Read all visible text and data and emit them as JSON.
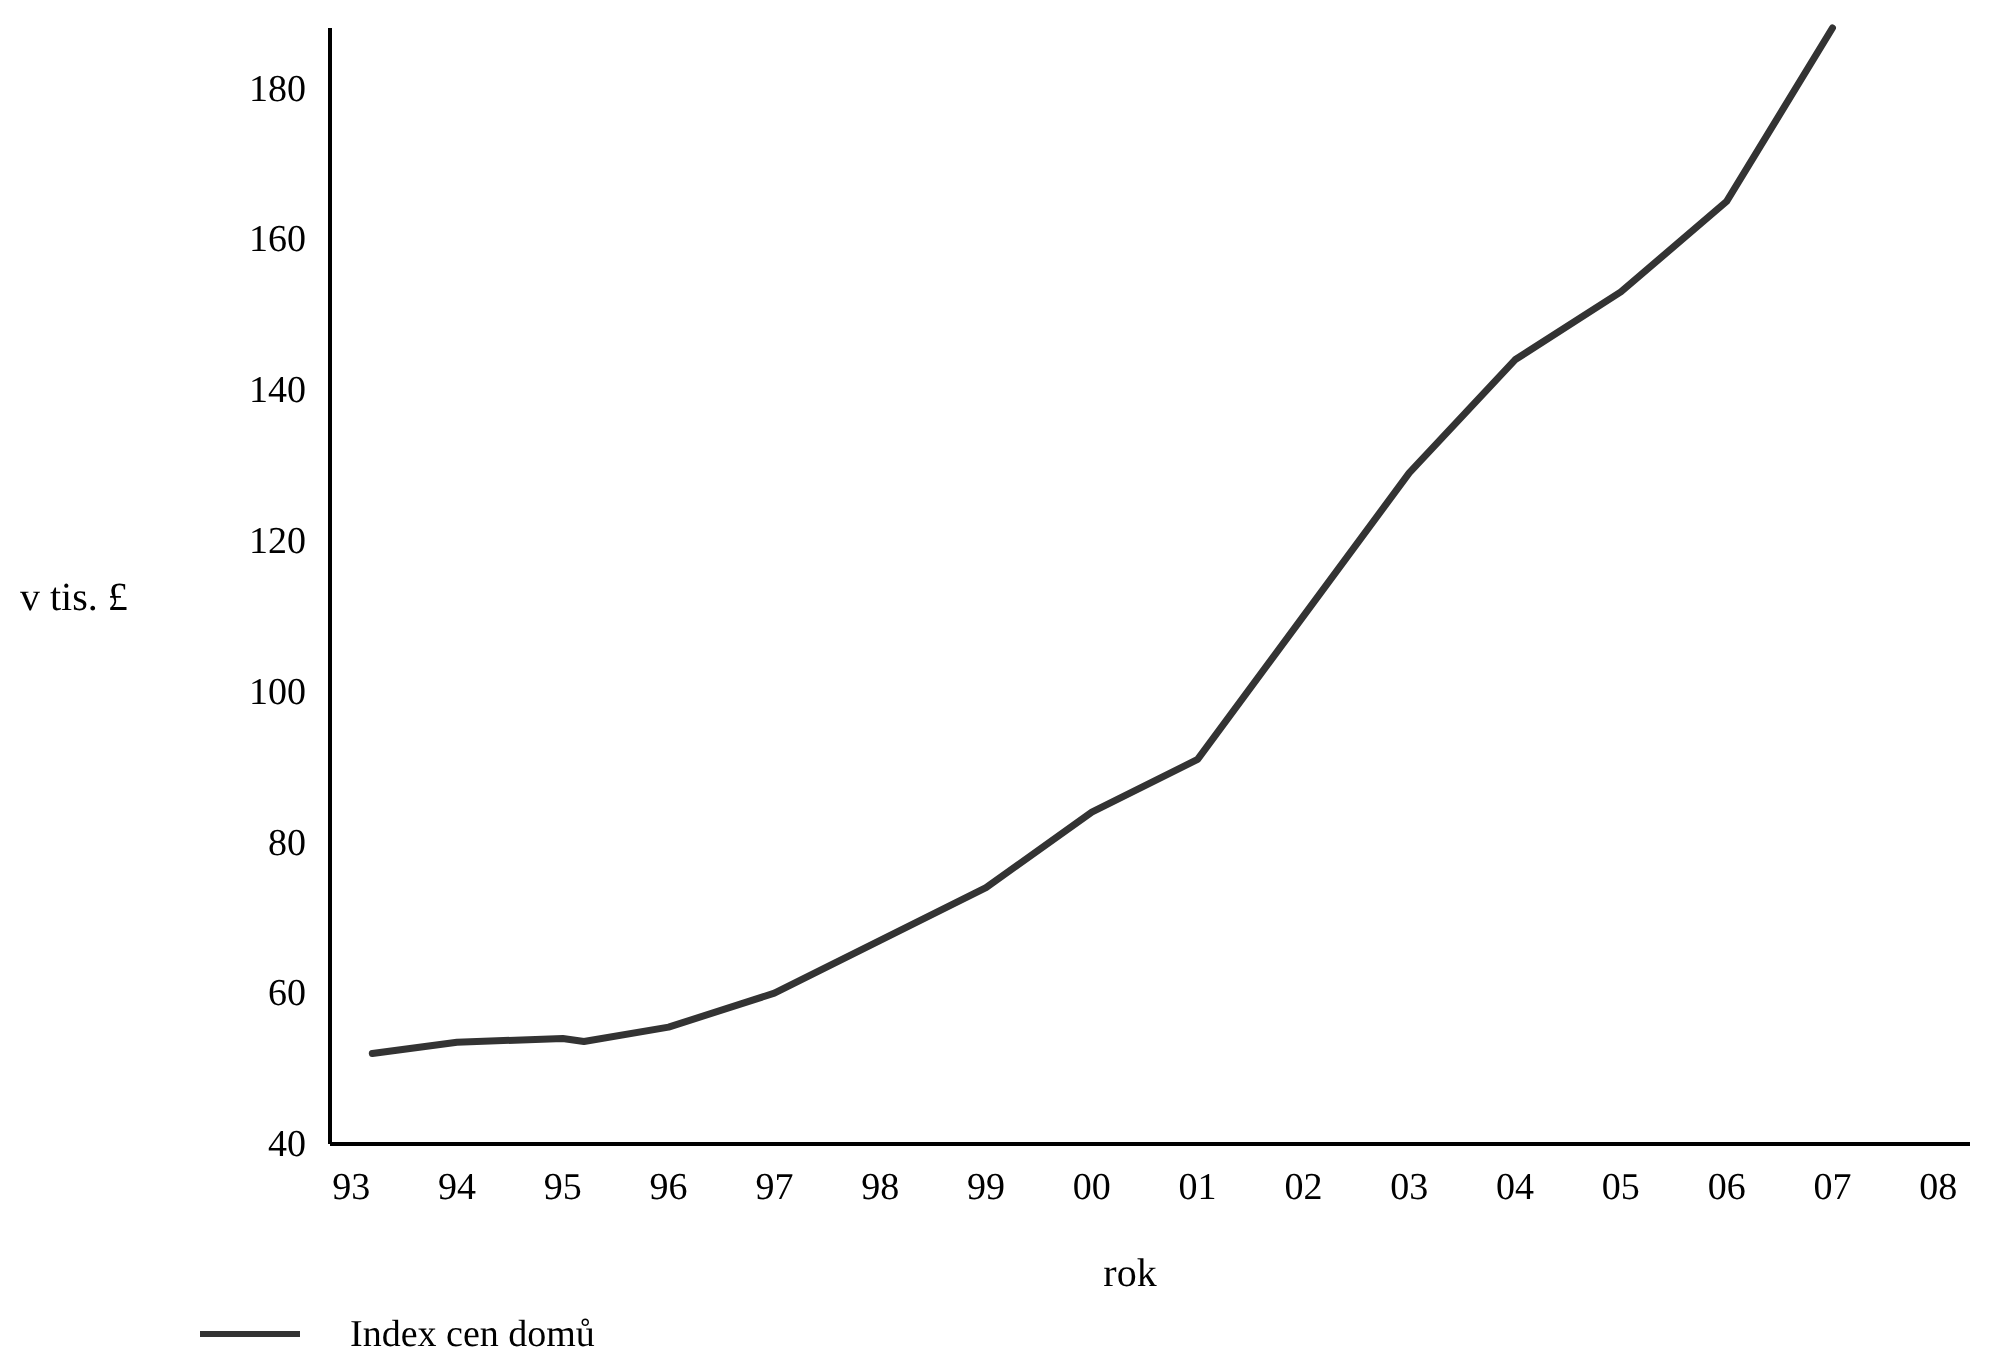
{
  "chart_data": {
    "type": "line",
    "xlabel": "rok",
    "ylabel": "v tis. £",
    "x": [
      1993.2,
      1994,
      1995,
      1995.2,
      1996,
      1997,
      1998,
      1999,
      2000,
      2001,
      2002,
      2003,
      2004,
      2005,
      2006,
      2007
    ],
    "series": [
      {
        "name": "Index cen domů",
        "color": "#333333",
        "values": [
          52,
          53.5,
          54,
          53.6,
          55.5,
          60,
          67,
          74,
          84,
          91,
          110,
          129,
          144,
          153,
          165,
          188
        ]
      }
    ],
    "xlim": [
      1992.8,
      2008.3
    ],
    "xticks": [
      {
        "value": 1993,
        "label": "93"
      },
      {
        "value": 1994,
        "label": "94"
      },
      {
        "value": 1995,
        "label": "95"
      },
      {
        "value": 1996,
        "label": "96"
      },
      {
        "value": 1997,
        "label": "97"
      },
      {
        "value": 1998,
        "label": "98"
      },
      {
        "value": 1999,
        "label": "99"
      },
      {
        "value": 2000,
        "label": "00"
      },
      {
        "value": 2001,
        "label": "01"
      },
      {
        "value": 2002,
        "label": "02"
      },
      {
        "value": 2003,
        "label": "03"
      },
      {
        "value": 2004,
        "label": "04"
      },
      {
        "value": 2005,
        "label": "05"
      },
      {
        "value": 2006,
        "label": "06"
      },
      {
        "value": 2007,
        "label": "07"
      },
      {
        "value": 2008,
        "label": "08"
      }
    ],
    "ylim": [
      40,
      188
    ],
    "yticks": [
      40,
      60,
      80,
      100,
      120,
      140,
      160,
      180
    ],
    "grid": false,
    "legend": "bottom",
    "marker": "none",
    "line_style": "solid"
  }
}
